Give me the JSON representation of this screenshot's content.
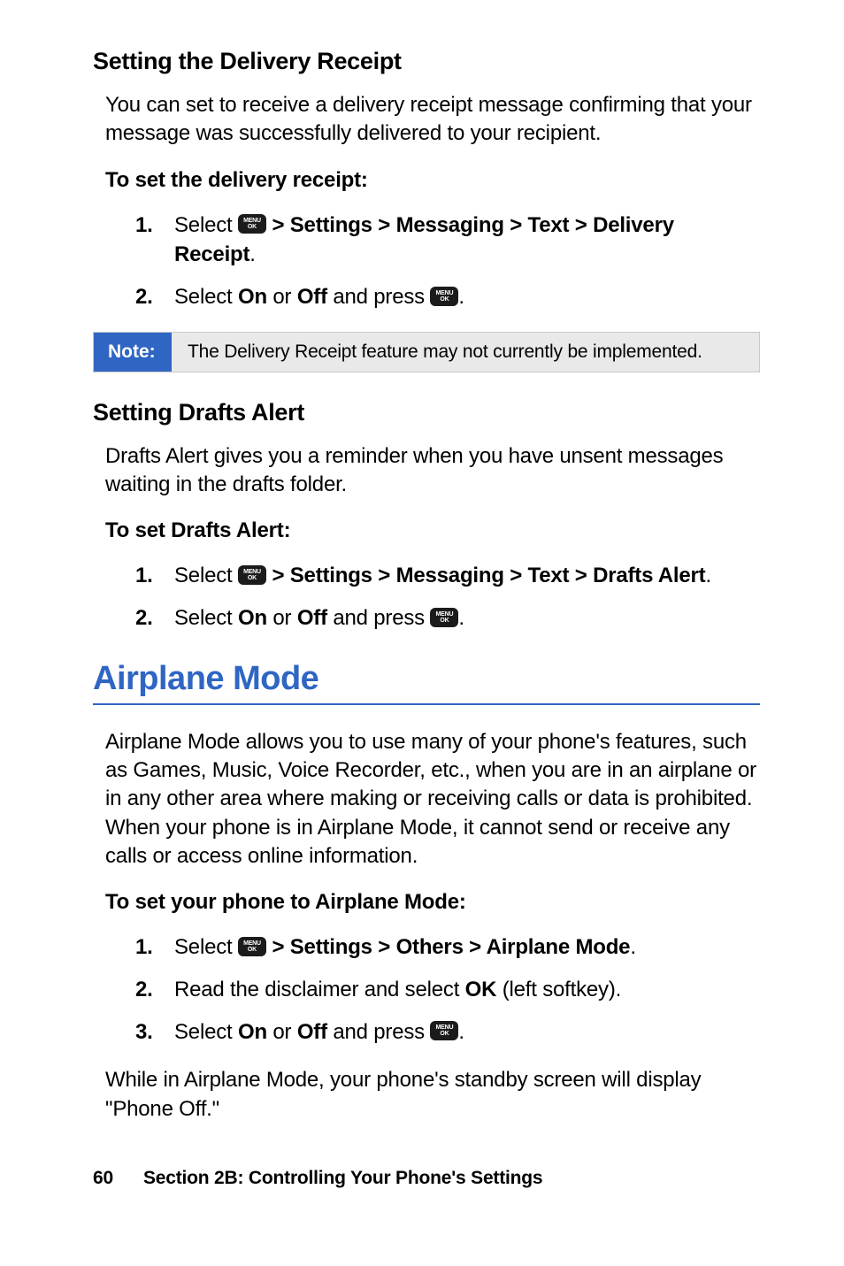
{
  "colors": {
    "accent": "#2f66c4",
    "noteBg": "#e9e9e9",
    "noteBorder": "#c9c9c9",
    "keyBg": "#1b1b1b",
    "text": "#000000"
  },
  "typography": {
    "h1_size_pt": 29,
    "h3_size_pt": 20,
    "body_size_pt": 18,
    "note_size_pt": 16,
    "footer_size_pt": 16
  },
  "key": {
    "line1": "MENU",
    "line2": "OK"
  },
  "sec1": {
    "heading": "Setting the Delivery Receipt",
    "para": "You can set to receive a delivery receipt message confirming that your message was successfully delivered to your recipient.",
    "lead": "To set the delivery receipt:",
    "step1_pre": "Select ",
    "step1_post": " > Settings > Messaging > Text > Delivery Receipt",
    "step2_a": "Select ",
    "step2_on": "On",
    "step2_or": " or ",
    "step2_off": "Off",
    "step2_b": " and press ",
    "step2_end": "."
  },
  "note": {
    "label": "Note:",
    "text": "The Delivery Receipt feature may not currently be implemented."
  },
  "sec2": {
    "heading": "Setting Drafts Alert",
    "para": "Drafts Alert gives you a reminder when you have unsent messages waiting in the drafts folder.",
    "lead": "To set Drafts Alert:",
    "step1_pre": "Select ",
    "step1_post": " > Settings > Messaging > Text > Drafts Alert",
    "step2_a": "Select ",
    "step2_on": "On",
    "step2_or": " or ",
    "step2_off": "Off",
    "step2_b": " and press ",
    "step2_end": "."
  },
  "sec3": {
    "heading": "Airplane Mode",
    "para": "Airplane Mode allows you to use many of your phone's features, such as Games, Music, Voice Recorder, etc., when you are in an airplane or in any other area where making or receiving calls or data is prohibited. When your phone is in Airplane Mode, it cannot send or receive any calls or access online information.",
    "lead": "To set your phone to Airplane Mode:",
    "step1_pre": "Select ",
    "step1_post": " > Settings > Others > Airplane Mode",
    "step2_a": "Read the disclaimer and select ",
    "step2_ok": "OK",
    "step2_b": " (left softkey).",
    "step3_a": "Select ",
    "step3_on": "On",
    "step3_or": " or ",
    "step3_off": "Off",
    "step3_b": " and press ",
    "step3_end": ".",
    "closing": "While in Airplane Mode, your phone's standby screen will display \"Phone Off.\""
  },
  "footer": {
    "page": "60",
    "section": "Section 2B: Controlling Your Phone's Settings"
  },
  "nums": {
    "n1": "1.",
    "n2": "2.",
    "n3": "3."
  },
  "period": "."
}
